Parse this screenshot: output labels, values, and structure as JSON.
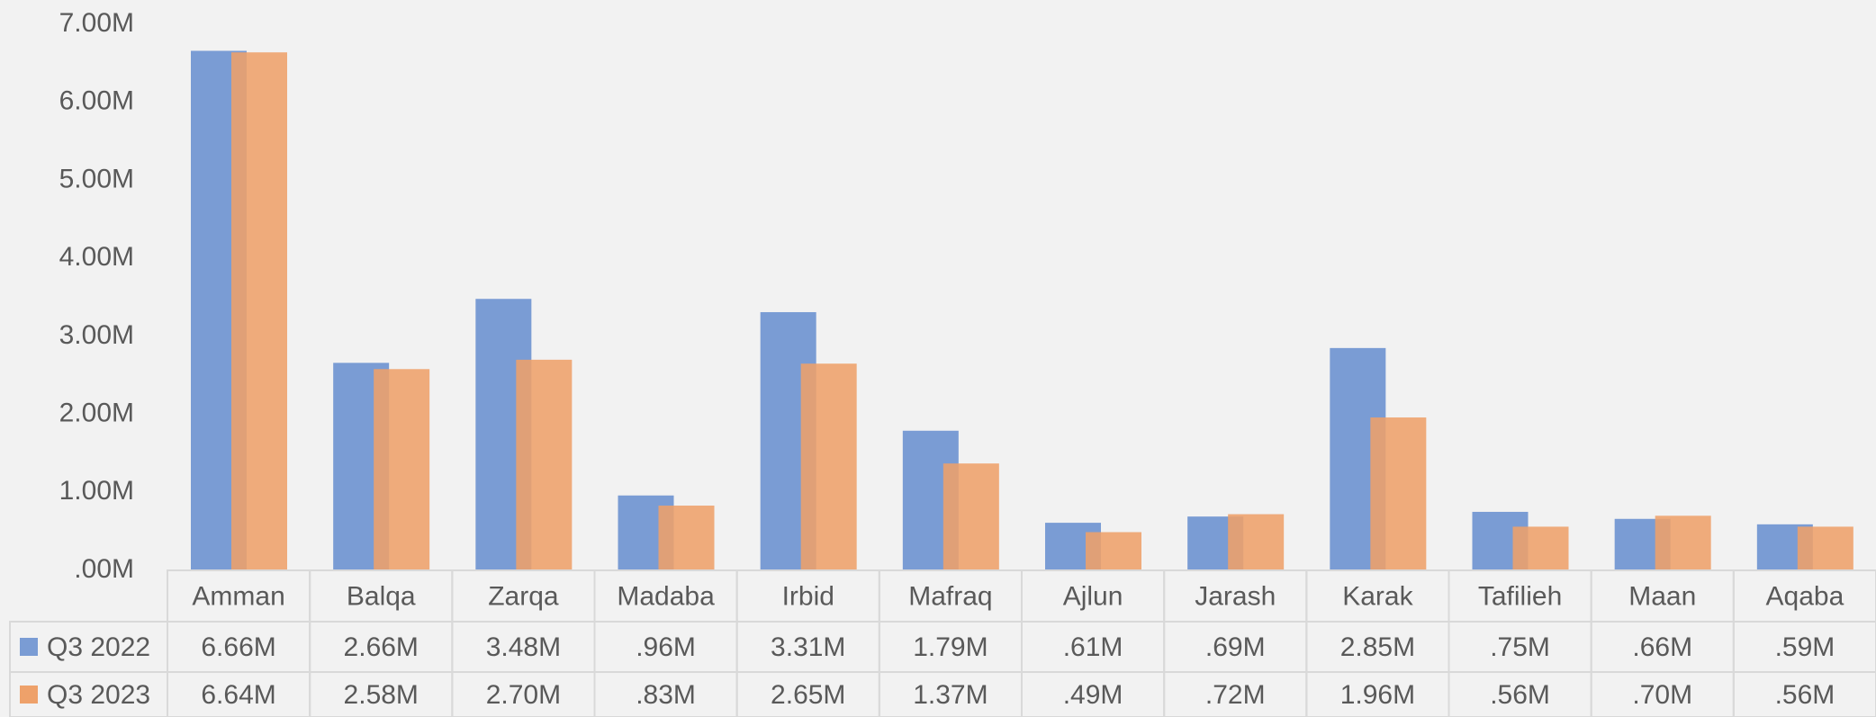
{
  "chart_data": {
    "type": "bar",
    "categories": [
      "Amman",
      "Balqa",
      "Zarqa",
      "Madaba",
      "Irbid",
      "Mafraq",
      "Ajlun",
      "Jarash",
      "Karak",
      "Tafilieh",
      "Maan",
      "Aqaba"
    ],
    "series": [
      {
        "name": "Q3 2022",
        "color": "#7a9cd4",
        "values": [
          6.66,
          2.66,
          3.48,
          0.96,
          3.31,
          1.79,
          0.61,
          0.69,
          2.85,
          0.75,
          0.66,
          0.59
        ],
        "value_labels": [
          "6.66M",
          "2.66M",
          "3.48M",
          ".96M",
          "3.31M",
          "1.79M",
          ".61M",
          ".69M",
          "2.85M",
          ".75M",
          ".66M",
          ".59M"
        ]
      },
      {
        "name": "Q3 2023",
        "color": "#eea16a",
        "values": [
          6.64,
          2.58,
          2.7,
          0.83,
          2.65,
          1.37,
          0.49,
          0.72,
          1.96,
          0.56,
          0.7,
          0.56
        ],
        "value_labels": [
          "6.64M",
          "2.58M",
          "2.70M",
          ".83M",
          "2.65M",
          "1.37M",
          ".49M",
          ".72M",
          "1.96M",
          ".56M",
          ".70M",
          ".56M"
        ]
      }
    ],
    "ylim": [
      0,
      7
    ],
    "yticks": [
      {
        "value": 0,
        "label": ".00M"
      },
      {
        "value": 1,
        "label": "1.00M"
      },
      {
        "value": 2,
        "label": "2.00M"
      },
      {
        "value": 3,
        "label": "3.00M"
      },
      {
        "value": 4,
        "label": "4.00M"
      },
      {
        "value": 5,
        "label": "5.00M"
      },
      {
        "value": 6,
        "label": "6.00M"
      },
      {
        "value": 7,
        "label": "7.00M"
      }
    ],
    "grid": false,
    "data_table": true
  }
}
